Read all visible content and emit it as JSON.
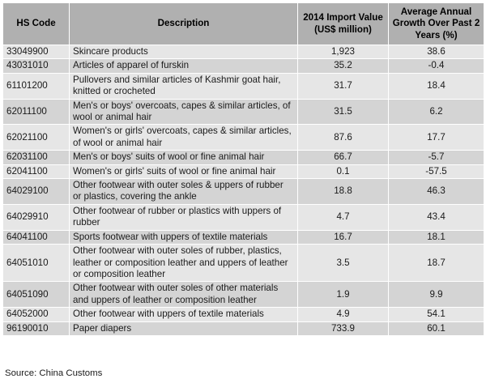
{
  "table": {
    "headers": {
      "code": "HS Code",
      "description": "Description",
      "import_value": "2014 Import Value (US$ million)",
      "growth": "Average Annual Growth Over Past 2 Years (%)"
    },
    "rows": [
      {
        "code": "33049900",
        "description": "Skincare products",
        "value": "1,923",
        "growth": "38.6"
      },
      {
        "code": "43031010",
        "description": "Articles of apparel of furskin",
        "value": "35.2",
        "growth": "-0.4"
      },
      {
        "code": "61101200",
        "description": "Pullovers and similar articles of Kashmir goat hair, knitted or crocheted",
        "value": "31.7",
        "growth": "18.4"
      },
      {
        "code": "62011100",
        "description": "Men's or boys' overcoats, capes & similar articles, of wool or animal hair",
        "value": "31.5",
        "growth": "6.2"
      },
      {
        "code": "62021100",
        "description": "Women's or girls' overcoats, capes & similar articles, of wool or animal hair",
        "value": "87.6",
        "growth": "17.7"
      },
      {
        "code": "62031100",
        "description": "Men's or boys' suits of wool or fine animal hair",
        "value": "66.7",
        "growth": "-5.7"
      },
      {
        "code": "62041100",
        "description": "Women's or girls' suits of wool or fine animal hair",
        "value": "0.1",
        "growth": "-57.5"
      },
      {
        "code": "64029100",
        "description": "Other footwear with outer soles & uppers of rubber or plastics, covering the ankle",
        "value": "18.8",
        "growth": "46.3"
      },
      {
        "code": "64029910",
        "description": "Other footwear of rubber or plastics with uppers of rubber",
        "value": "4.7",
        "growth": "43.4"
      },
      {
        "code": "64041100",
        "description": "Sports footwear with uppers of textile materials",
        "value": "16.7",
        "growth": "18.1"
      },
      {
        "code": "64051010",
        "description": "Other footwear with outer soles of rubber, plastics, leather or composition leather and uppers of leather or composition leather",
        "value": "3.5",
        "growth": "18.7"
      },
      {
        "code": "64051090",
        "description": "Other footwear with outer soles of other materials and uppers of leather or composition leather",
        "value": "1.9",
        "growth": "9.9"
      },
      {
        "code": "64052000",
        "description": "Other footwear with uppers of textile materials",
        "value": "4.9",
        "growth": "54.1"
      },
      {
        "code": "96190010",
        "description": "Paper diapers",
        "value": "733.9",
        "growth": "60.1"
      }
    ]
  },
  "source": "Source: China Customs"
}
